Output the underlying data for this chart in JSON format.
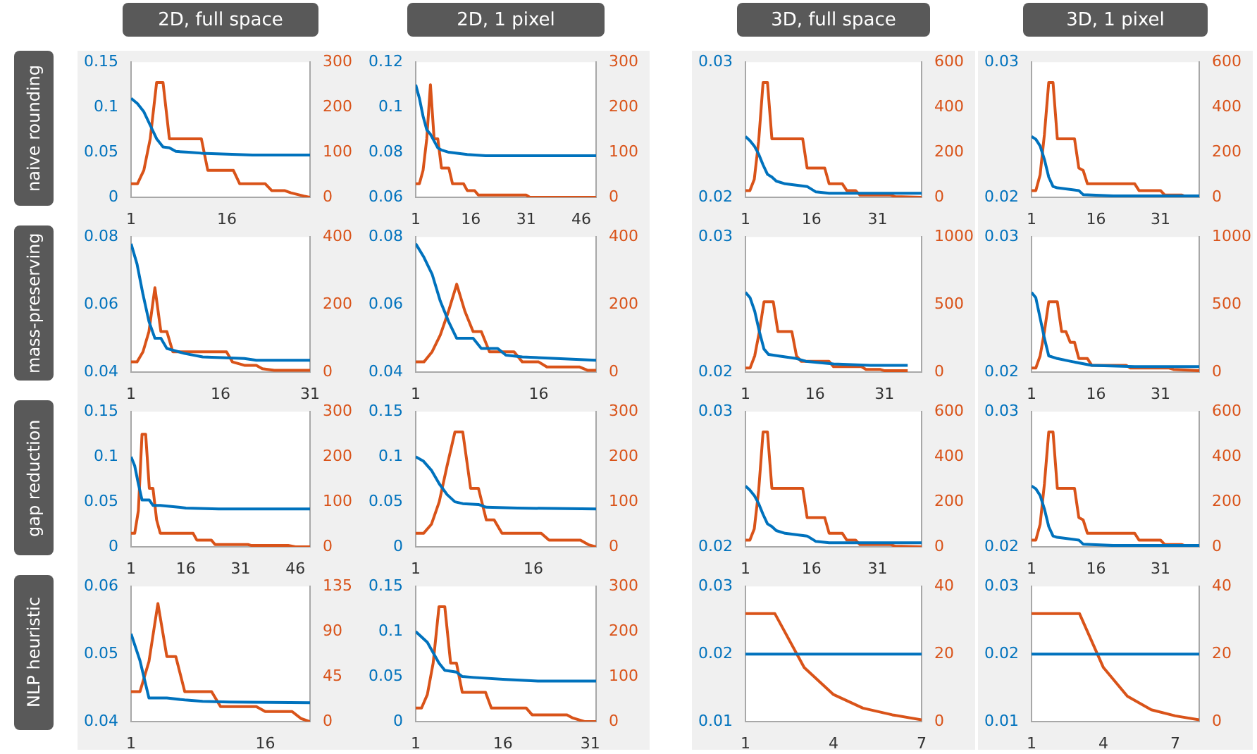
{
  "chart_data": [
    {
      "type": "line",
      "title": "2D, full space",
      "ylabel": "naive rounding",
      "xlim": [
        1,
        29
      ],
      "xticks": [
        1,
        16
      ],
      "ylim": [
        0,
        0.15
      ],
      "yticks": [
        0,
        0.05,
        0.1,
        0.15
      ],
      "y2lim": [
        0,
        300
      ],
      "y2ticks": [
        0,
        100,
        200,
        300
      ],
      "series": [
        {
          "color": "#0072bd",
          "x": [
            1,
            2,
            3,
            4,
            5,
            6,
            7,
            8,
            10,
            12,
            16,
            20,
            29
          ],
          "values": [
            0.11,
            0.104,
            0.095,
            0.08,
            0.065,
            0.056,
            0.055,
            0.051,
            0.05,
            0.049,
            0.048,
            0.047,
            0.047
          ]
        },
        {
          "color": "#d95319",
          "axis": "y2",
          "x": [
            1,
            2,
            3,
            4,
            5,
            6,
            7,
            12,
            13,
            17,
            18,
            22,
            23,
            25,
            26,
            28,
            29
          ],
          "values": [
            30,
            30,
            60,
            130,
            255,
            255,
            130,
            130,
            60,
            60,
            30,
            30,
            15,
            15,
            10,
            3,
            0
          ]
        }
      ]
    },
    {
      "type": "line",
      "title": "2D, 1 pixel",
      "xlim": [
        1,
        50
      ],
      "xticks": [
        1,
        16,
        31,
        46
      ],
      "ylim": [
        0.06,
        0.12
      ],
      "yticks": [
        0.06,
        0.08,
        0.1,
        0.12
      ],
      "y2lim": [
        0,
        300
      ],
      "y2ticks": [
        0,
        100,
        200,
        300
      ],
      "series": [
        {
          "color": "#0072bd",
          "x": [
            1,
            2,
            3,
            4,
            5,
            6,
            7,
            8,
            10,
            15,
            20,
            50
          ],
          "values": [
            0.11,
            0.104,
            0.096,
            0.09,
            0.088,
            0.085,
            0.082,
            0.081,
            0.08,
            0.079,
            0.0785,
            0.0785
          ]
        },
        {
          "color": "#d95319",
          "axis": "y2",
          "x": [
            1,
            2,
            3,
            4,
            5,
            6,
            7,
            8,
            10,
            11,
            14,
            15,
            17,
            18,
            31,
            32,
            50
          ],
          "values": [
            30,
            30,
            60,
            130,
            250,
            130,
            130,
            65,
            65,
            30,
            30,
            15,
            15,
            5,
            5,
            0,
            0
          ]
        }
      ]
    },
    {
      "type": "line",
      "title": "3D, full space",
      "xlim": [
        1,
        41
      ],
      "xticks": [
        1,
        16,
        31
      ],
      "ylim": [
        0.02,
        0.03
      ],
      "yticks": [
        0.02,
        0.03
      ],
      "y2lim": [
        0,
        600
      ],
      "y2ticks": [
        0,
        200,
        400,
        600
      ],
      "series": [
        {
          "color": "#0072bd",
          "x": [
            1,
            2,
            3,
            4,
            5,
            6,
            7,
            8,
            10,
            15,
            17,
            20,
            41
          ],
          "values": [
            0.0245,
            0.0242,
            0.0238,
            0.0232,
            0.0224,
            0.0217,
            0.0215,
            0.0212,
            0.021,
            0.0208,
            0.0204,
            0.0203,
            0.0203
          ]
        },
        {
          "color": "#d95319",
          "axis": "y2",
          "x": [
            1,
            2,
            3,
            4,
            5,
            6,
            7,
            14,
            15,
            19,
            20,
            23,
            24,
            26,
            27,
            34,
            35,
            41
          ],
          "values": [
            30,
            30,
            80,
            250,
            510,
            510,
            260,
            260,
            130,
            130,
            60,
            60,
            30,
            30,
            10,
            10,
            3,
            0
          ]
        }
      ]
    },
    {
      "type": "line",
      "title": "3D, 1 pixel",
      "xlim": [
        1,
        40
      ],
      "xticks": [
        1,
        16,
        31
      ],
      "ylim": [
        0.02,
        0.03
      ],
      "yticks": [
        0.02,
        0.03
      ],
      "y2lim": [
        0,
        600
      ],
      "y2ticks": [
        0,
        200,
        400,
        600
      ],
      "series": [
        {
          "color": "#0072bd",
          "x": [
            1,
            2,
            3,
            4,
            5,
            6,
            7,
            12,
            13,
            20,
            40
          ],
          "values": [
            0.0245,
            0.0243,
            0.0238,
            0.0228,
            0.0215,
            0.0208,
            0.0207,
            0.0205,
            0.0202,
            0.0201,
            0.0201
          ]
        },
        {
          "color": "#d95319",
          "axis": "y2",
          "x": [
            1,
            2,
            3,
            4,
            5,
            6,
            7,
            11,
            12,
            13,
            14,
            25,
            26,
            31,
            32,
            36,
            37,
            40
          ],
          "values": [
            30,
            30,
            100,
            280,
            510,
            510,
            260,
            260,
            130,
            120,
            60,
            60,
            30,
            30,
            10,
            10,
            3,
            0
          ]
        }
      ]
    },
    {
      "type": "line",
      "ylabel": "mass-preserving",
      "xlim": [
        1,
        31
      ],
      "xticks": [
        1,
        16,
        31
      ],
      "ylim": [
        0.04,
        0.08
      ],
      "yticks": [
        0.04,
        0.06,
        0.08
      ],
      "y2lim": [
        0,
        400
      ],
      "y2ticks": [
        0,
        200,
        400
      ],
      "series": [
        {
          "color": "#0072bd",
          "x": [
            1,
            2,
            3,
            4,
            5,
            6,
            7,
            8,
            10,
            13,
            20,
            22,
            31
          ],
          "values": [
            0.078,
            0.072,
            0.063,
            0.055,
            0.05,
            0.05,
            0.047,
            0.0465,
            0.0455,
            0.0445,
            0.044,
            0.0435,
            0.0435
          ]
        },
        {
          "color": "#d95319",
          "axis": "y2",
          "x": [
            1,
            2,
            3,
            4,
            5,
            6,
            7,
            8,
            17,
            18,
            20,
            22,
            23,
            25,
            31
          ],
          "values": [
            30,
            30,
            60,
            120,
            250,
            120,
            120,
            60,
            60,
            30,
            20,
            20,
            10,
            5,
            5
          ]
        }
      ]
    },
    {
      "type": "line",
      "xlim": [
        1,
        23
      ],
      "xticks": [
        1,
        16
      ],
      "ylim": [
        0.04,
        0.08
      ],
      "yticks": [
        0.04,
        0.06,
        0.08
      ],
      "y2lim": [
        0,
        400
      ],
      "y2ticks": [
        0,
        200,
        400
      ],
      "series": [
        {
          "color": "#0072bd",
          "x": [
            1,
            2,
            3,
            4,
            5,
            6,
            8,
            9,
            11,
            12,
            14,
            23
          ],
          "values": [
            0.078,
            0.074,
            0.069,
            0.061,
            0.055,
            0.05,
            0.05,
            0.047,
            0.047,
            0.045,
            0.0445,
            0.0435
          ]
        },
        {
          "color": "#d95319",
          "axis": "y2",
          "x": [
            1,
            2,
            3,
            4,
            5,
            6,
            7,
            8,
            9,
            10,
            13,
            14,
            16,
            17,
            21,
            22,
            23
          ],
          "values": [
            30,
            30,
            60,
            110,
            180,
            260,
            180,
            120,
            120,
            60,
            60,
            30,
            30,
            15,
            15,
            5,
            5
          ]
        }
      ]
    },
    {
      "type": "line",
      "xlim": [
        1,
        39
      ],
      "xticks": [
        1,
        16,
        31
      ],
      "ylim": [
        0.02,
        0.03
      ],
      "yticks": [
        0.02,
        0.03
      ],
      "y2lim": [
        0,
        1000
      ],
      "y2ticks": [
        0,
        500,
        1000
      ],
      "series": [
        {
          "color": "#0072bd",
          "x": [
            1,
            2,
            3,
            4,
            5,
            6,
            8,
            12,
            14,
            20,
            28,
            36
          ],
          "values": [
            0.0259,
            0.0255,
            0.0245,
            0.023,
            0.0217,
            0.0213,
            0.0212,
            0.021,
            0.0208,
            0.0206,
            0.0205,
            0.0205
          ]
        },
        {
          "color": "#d95319",
          "axis": "y2",
          "x": [
            1,
            2,
            3,
            4,
            5,
            7,
            8,
            11,
            12,
            13,
            19,
            20,
            26,
            27,
            30,
            31,
            36
          ],
          "values": [
            30,
            30,
            120,
            300,
            520,
            520,
            300,
            300,
            120,
            80,
            80,
            40,
            40,
            20,
            20,
            10,
            10
          ]
        }
      ]
    },
    {
      "type": "line",
      "xlim": [
        1,
        40
      ],
      "xticks": [
        1,
        16,
        31
      ],
      "ylim": [
        0.02,
        0.03
      ],
      "yticks": [
        0.02,
        0.03
      ],
      "y2lim": [
        0,
        1000
      ],
      "y2ticks": [
        0,
        500,
        1000
      ],
      "series": [
        {
          "color": "#0072bd",
          "x": [
            1,
            2,
            3,
            4,
            5,
            7,
            10,
            15,
            25,
            40
          ],
          "values": [
            0.0259,
            0.0255,
            0.024,
            0.0225,
            0.0212,
            0.021,
            0.0208,
            0.0205,
            0.0204,
            0.0204
          ]
        },
        {
          "color": "#d95319",
          "axis": "y2",
          "x": [
            1,
            2,
            3,
            4,
            5,
            7,
            8,
            9,
            10,
            11,
            12,
            14,
            15,
            23,
            24,
            33,
            34,
            40
          ],
          "values": [
            30,
            30,
            120,
            300,
            520,
            520,
            300,
            300,
            220,
            220,
            100,
            100,
            50,
            50,
            30,
            30,
            20,
            10
          ]
        }
      ]
    },
    {
      "type": "line",
      "ylabel": "gap reduction",
      "xlim": [
        1,
        50
      ],
      "xticks": [
        1,
        16,
        31,
        46
      ],
      "ylim": [
        0,
        0.15
      ],
      "yticks": [
        0,
        0.05,
        0.1,
        0.15
      ],
      "y2lim": [
        0,
        300
      ],
      "y2ticks": [
        0,
        100,
        200,
        300
      ],
      "series": [
        {
          "color": "#0072bd",
          "x": [
            1,
            2,
            3,
            4,
            6,
            7,
            9,
            14,
            16,
            25,
            50
          ],
          "values": [
            0.1,
            0.09,
            0.07,
            0.052,
            0.052,
            0.046,
            0.046,
            0.044,
            0.043,
            0.042,
            0.042
          ]
        },
        {
          "color": "#d95319",
          "axis": "y2",
          "x": [
            1,
            2,
            3,
            4,
            5,
            6,
            7,
            8,
            9,
            18,
            19,
            23,
            24,
            33,
            34,
            44,
            46,
            50
          ],
          "values": [
            30,
            30,
            80,
            250,
            250,
            130,
            130,
            60,
            30,
            30,
            15,
            15,
            5,
            5,
            3,
            3,
            0,
            0
          ]
        }
      ]
    },
    {
      "type": "line",
      "xlim": [
        1,
        24
      ],
      "xticks": [
        1,
        16
      ],
      "ylim": [
        0,
        0.15
      ],
      "yticks": [
        0,
        0.05,
        0.1,
        0.15
      ],
      "y2lim": [
        0,
        300
      ],
      "y2ticks": [
        0,
        100,
        200,
        300
      ],
      "series": [
        {
          "color": "#0072bd",
          "x": [
            1,
            2,
            3,
            4,
            5,
            6,
            7,
            9,
            10,
            14,
            24
          ],
          "values": [
            0.1,
            0.095,
            0.085,
            0.07,
            0.058,
            0.05,
            0.048,
            0.047,
            0.044,
            0.043,
            0.042
          ]
        },
        {
          "color": "#d95319",
          "axis": "y2",
          "x": [
            1,
            2,
            3,
            4,
            5,
            6,
            7,
            8,
            9,
            10,
            11,
            12,
            17,
            18,
            22,
            23,
            24
          ],
          "values": [
            30,
            30,
            50,
            100,
            180,
            255,
            255,
            130,
            130,
            60,
            60,
            30,
            30,
            15,
            15,
            5,
            0
          ]
        }
      ]
    },
    {
      "type": "line",
      "xlim": [
        1,
        41
      ],
      "xticks": [
        1,
        16,
        31
      ],
      "ylim": [
        0.02,
        0.03
      ],
      "yticks": [
        0.02,
        0.03
      ],
      "y2lim": [
        0,
        600
      ],
      "y2ticks": [
        0,
        200,
        400,
        600
      ],
      "series": [
        {
          "color": "#0072bd",
          "x": [
            1,
            2,
            3,
            4,
            5,
            6,
            7,
            8,
            10,
            15,
            17,
            20,
            41
          ],
          "values": [
            0.0245,
            0.0242,
            0.0238,
            0.0232,
            0.0224,
            0.0217,
            0.0215,
            0.0212,
            0.021,
            0.0208,
            0.0204,
            0.0203,
            0.0203
          ]
        },
        {
          "color": "#d95319",
          "axis": "y2",
          "x": [
            1,
            2,
            3,
            4,
            5,
            6,
            7,
            14,
            15,
            19,
            20,
            23,
            24,
            26,
            27,
            34,
            35,
            41
          ],
          "values": [
            30,
            30,
            80,
            250,
            510,
            510,
            260,
            260,
            130,
            130,
            60,
            60,
            30,
            30,
            10,
            10,
            3,
            0
          ]
        }
      ]
    },
    {
      "type": "line",
      "xlim": [
        1,
        40
      ],
      "xticks": [
        1,
        16,
        31
      ],
      "ylim": [
        0.02,
        0.03
      ],
      "yticks": [
        0.02,
        0.03
      ],
      "y2lim": [
        0,
        600
      ],
      "y2ticks": [
        0,
        200,
        400,
        600
      ],
      "series": [
        {
          "color": "#0072bd",
          "x": [
            1,
            2,
            3,
            4,
            5,
            6,
            7,
            12,
            13,
            20,
            40
          ],
          "values": [
            0.0245,
            0.0243,
            0.0238,
            0.0228,
            0.0215,
            0.0208,
            0.0207,
            0.0205,
            0.0202,
            0.0201,
            0.0201
          ]
        },
        {
          "color": "#d95319",
          "axis": "y2",
          "x": [
            1,
            2,
            3,
            4,
            5,
            6,
            7,
            11,
            12,
            13,
            14,
            25,
            26,
            31,
            32,
            36,
            37,
            40
          ],
          "values": [
            30,
            30,
            100,
            280,
            510,
            510,
            260,
            260,
            130,
            120,
            60,
            60,
            30,
            30,
            10,
            10,
            3,
            0
          ]
        }
      ]
    },
    {
      "type": "line",
      "ylabel": "NLP heuristic",
      "xlim": [
        1,
        21
      ],
      "xticks": [
        1,
        16
      ],
      "ylim": [
        0.04,
        0.06
      ],
      "yticks": [
        0.04,
        0.05,
        0.06
      ],
      "y2lim": [
        0,
        135
      ],
      "y2ticks": [
        0,
        45,
        90,
        135
      ],
      "series": [
        {
          "color": "#0072bd",
          "x": [
            1,
            2,
            3,
            5,
            7,
            9,
            12,
            21
          ],
          "values": [
            0.053,
            0.049,
            0.0435,
            0.0435,
            0.0432,
            0.043,
            0.0429,
            0.0428
          ]
        },
        {
          "color": "#d95319",
          "axis": "y2",
          "x": [
            1,
            2,
            3,
            4,
            5,
            6,
            7,
            10,
            11,
            15,
            16,
            19,
            20,
            21
          ],
          "values": [
            30,
            30,
            60,
            118,
            65,
            65,
            30,
            30,
            15,
            15,
            10,
            10,
            3,
            0
          ]
        }
      ]
    },
    {
      "type": "line",
      "xlim": [
        1,
        32
      ],
      "xticks": [
        1,
        16,
        31
      ],
      "ylim": [
        0,
        0.15
      ],
      "yticks": [
        0,
        0.05,
        0.1,
        0.15
      ],
      "y2lim": [
        0,
        300
      ],
      "y2ticks": [
        0,
        100,
        200,
        300
      ],
      "series": [
        {
          "color": "#0072bd",
          "x": [
            1,
            3,
            5,
            6,
            8,
            9,
            11,
            16,
            22,
            32
          ],
          "values": [
            0.1,
            0.088,
            0.065,
            0.057,
            0.055,
            0.05,
            0.049,
            0.047,
            0.045,
            0.045
          ]
        },
        {
          "color": "#d95319",
          "axis": "y2",
          "x": [
            1,
            2,
            3,
            4,
            5,
            6,
            7,
            8,
            9,
            13,
            14,
            20,
            21,
            27,
            28,
            30,
            32
          ],
          "values": [
            30,
            30,
            60,
            130,
            255,
            255,
            130,
            130,
            65,
            65,
            30,
            30,
            15,
            15,
            8,
            0,
            0
          ]
        }
      ]
    },
    {
      "type": "line",
      "xlim": [
        1,
        7
      ],
      "xticks": [
        1,
        4,
        7
      ],
      "ylim": [
        0.01,
        0.03
      ],
      "yticks": [
        0.01,
        0.02,
        0.03
      ],
      "y2lim": [
        0,
        40
      ],
      "y2ticks": [
        0,
        20,
        40
      ],
      "series": [
        {
          "color": "#0072bd",
          "x": [
            1,
            7
          ],
          "values": [
            0.02,
            0.02
          ]
        },
        {
          "color": "#d95319",
          "axis": "y2",
          "x": [
            1,
            2,
            3,
            4,
            5,
            6,
            7
          ],
          "values": [
            32,
            32,
            16,
            8,
            4,
            2,
            0.5
          ]
        }
      ]
    },
    {
      "type": "line",
      "xlim": [
        1,
        8
      ],
      "xticks": [
        1,
        4,
        7
      ],
      "ylim": [
        0.01,
        0.03
      ],
      "yticks": [
        0.01,
        0.02,
        0.03
      ],
      "y2lim": [
        0,
        40
      ],
      "y2ticks": [
        0,
        20,
        40
      ],
      "series": [
        {
          "color": "#0072bd",
          "x": [
            1,
            8
          ],
          "values": [
            0.02,
            0.02
          ]
        },
        {
          "color": "#d95319",
          "axis": "y2",
          "x": [
            1,
            2,
            3,
            4,
            5,
            6,
            7,
            8
          ],
          "values": [
            32,
            32,
            32,
            16,
            7.5,
            3.5,
            1.7,
            0.5
          ]
        }
      ]
    }
  ]
}
